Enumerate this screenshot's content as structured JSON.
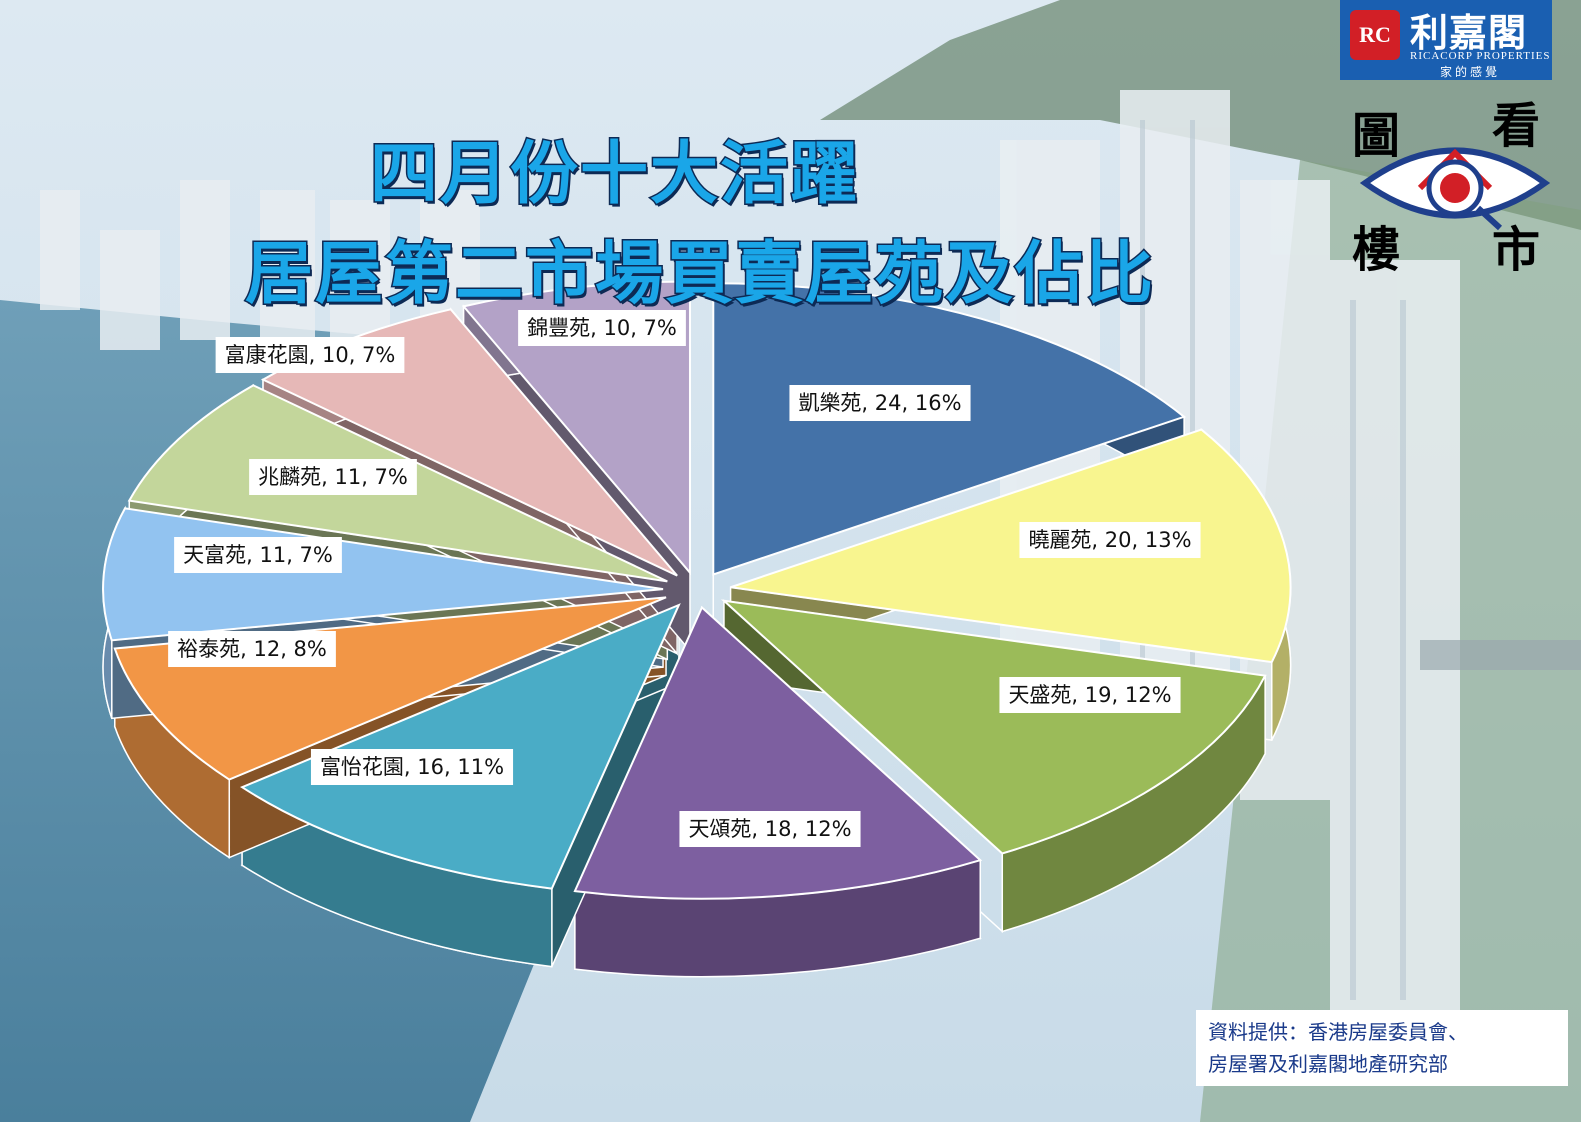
{
  "header": {
    "title_line1": "四月份十大活躍",
    "title_line2": "居屋第二市場買賣屋苑及佔比"
  },
  "brand": {
    "badge": "RC",
    "name_cn": "利嘉閣",
    "name_en": "RICACORP PROPERTIES",
    "slogan": "家的感覺",
    "emblem_glyphs": [
      "圖",
      "看",
      "樓",
      "市"
    ]
  },
  "source": {
    "line1": "資料提供：香港房屋委員會、",
    "line2": "房屋署及利嘉閣地產研究部"
  },
  "chart_data": {
    "type": "pie",
    "title": "四月份十大活躍居屋第二市場買賣屋苑及佔比",
    "slices": [
      {
        "label": "凱樂苑",
        "value": 24,
        "percent": 16,
        "color": "#4472a8",
        "text": "凱樂苑, 24, 16%"
      },
      {
        "label": "曉麗苑",
        "value": 20,
        "percent": 13,
        "color": "#f8f58f",
        "text": "曉麗苑, 20, 13%"
      },
      {
        "label": "天盛苑",
        "value": 19,
        "percent": 12,
        "color": "#9bbb59",
        "text": "天盛苑, 19, 12%"
      },
      {
        "label": "天頌苑",
        "value": 18,
        "percent": 12,
        "color": "#7d5fa0",
        "text": "天頌苑, 18, 12%"
      },
      {
        "label": "富怡花園",
        "value": 16,
        "percent": 11,
        "color": "#4aacc6",
        "text": "富怡花園, 16, 11%"
      },
      {
        "label": "裕泰苑",
        "value": 12,
        "percent": 8,
        "color": "#f29646",
        "text": "裕泰苑, 12, 8%"
      },
      {
        "label": "天富苑",
        "value": 11,
        "percent": 7,
        "color": "#92c3f0",
        "text": "天富苑, 11, 7%"
      },
      {
        "label": "兆麟苑",
        "value": 11,
        "percent": 7,
        "color": "#c3d69b",
        "text": "兆麟苑, 11, 7%"
      },
      {
        "label": "富康花園",
        "value": 10,
        "percent": 7,
        "color": "#e6b8b7",
        "text": "富康花園, 10, 7%"
      },
      {
        "label": "錦豐苑",
        "value": 10,
        "percent": 7,
        "color": "#b3a2c7",
        "text": "錦豐苑, 10, 7%"
      }
    ]
  }
}
